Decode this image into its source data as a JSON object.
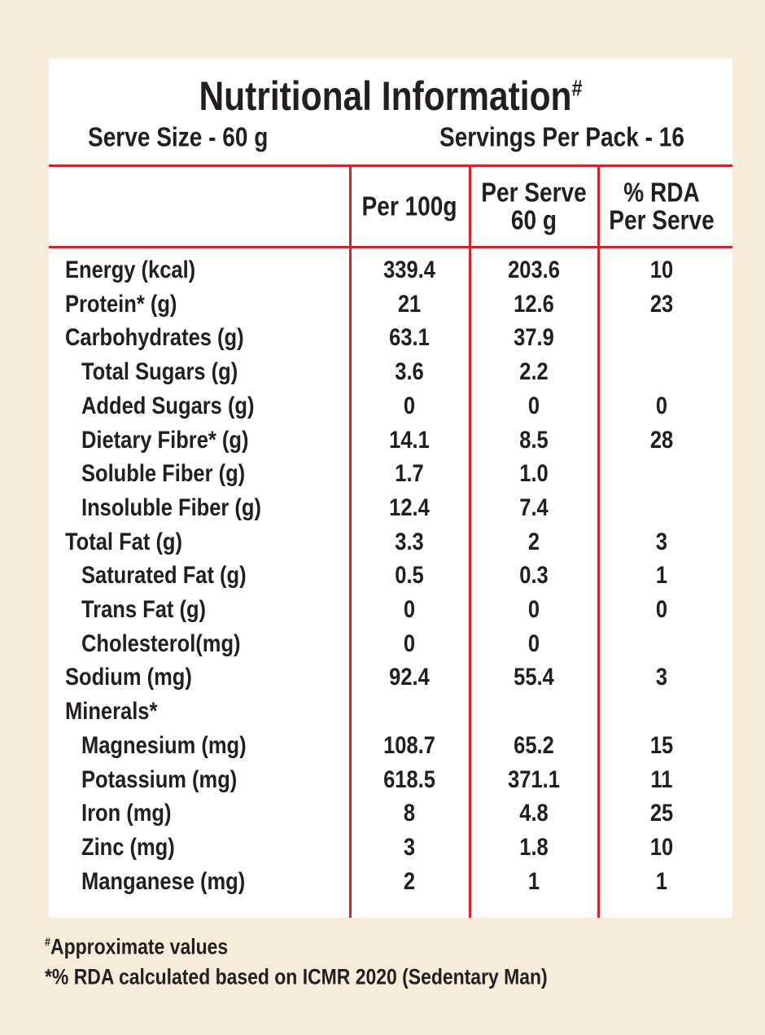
{
  "title": "Nutritional Information",
  "title_mark": "#",
  "serve_size": "Serve Size - 60 g",
  "servings": "Servings Per Pack - 16",
  "table": {
    "headers": [
      [
        "Per 100g"
      ],
      [
        "Per Serve",
        "60 g"
      ],
      [
        "% RDA",
        "Per Serve"
      ]
    ],
    "rows": [
      {
        "label": "Energy (kcal)",
        "values": [
          "339.4",
          "203.6",
          "10"
        ]
      },
      {
        "label": "Protein* (g)",
        "values": [
          "21",
          "12.6",
          "23"
        ]
      },
      {
        "label": "Carbohydrates (g)",
        "values": [
          "63.1",
          "37.9",
          null
        ],
        "children": [
          {
            "label": "Total Sugars (g)",
            "values": [
              "3.6",
              "2.2",
              null
            ]
          },
          {
            "label": "Added Sugars (g)",
            "values": [
              "0",
              "0",
              "0"
            ]
          },
          {
            "label": "Dietary Fibre* (g)",
            "values": [
              "14.1",
              "8.5",
              "28"
            ]
          },
          {
            "label": "Soluble Fiber (g)",
            "values": [
              "1.7",
              "1.0",
              null
            ]
          },
          {
            "label": "Insoluble Fiber (g)",
            "values": [
              "12.4",
              "7.4",
              null
            ]
          }
        ]
      },
      {
        "label": "Total Fat (g)",
        "values": [
          "3.3",
          "2",
          "3"
        ],
        "children": [
          {
            "label": "Saturated Fat (g)",
            "values": [
              "0.5",
              "0.3",
              "1"
            ]
          },
          {
            "label": "Trans Fat (g)",
            "values": [
              "0",
              "0",
              "0"
            ]
          },
          {
            "label": "Cholesterol(mg)",
            "values": [
              "0",
              "0",
              null
            ]
          }
        ]
      },
      {
        "label": "Sodium (mg)",
        "values": [
          "92.4",
          "55.4",
          "3"
        ]
      },
      {
        "label": "Minerals*",
        "values": [
          null,
          null,
          null
        ],
        "children": [
          {
            "label": "Magnesium (mg)",
            "values": [
              "108.7",
              "65.2",
              "15"
            ]
          },
          {
            "label": "Potassium (mg)",
            "values": [
              "618.5",
              "371.1",
              "11"
            ]
          },
          {
            "label": "Iron (mg)",
            "values": [
              "8",
              "4.8",
              "25"
            ]
          },
          {
            "label": "Zinc (mg)",
            "values": [
              "3",
              "1.8",
              "10"
            ]
          },
          {
            "label": "Manganese (mg)",
            "values": [
              "2",
              "1",
              "1"
            ]
          }
        ]
      }
    ]
  },
  "footnotes": [
    {
      "mark": "#",
      "text": "Approximate values"
    },
    {
      "text": "*% RDA calculated based on ICMR 2020 (Sedentary Man)"
    }
  ]
}
